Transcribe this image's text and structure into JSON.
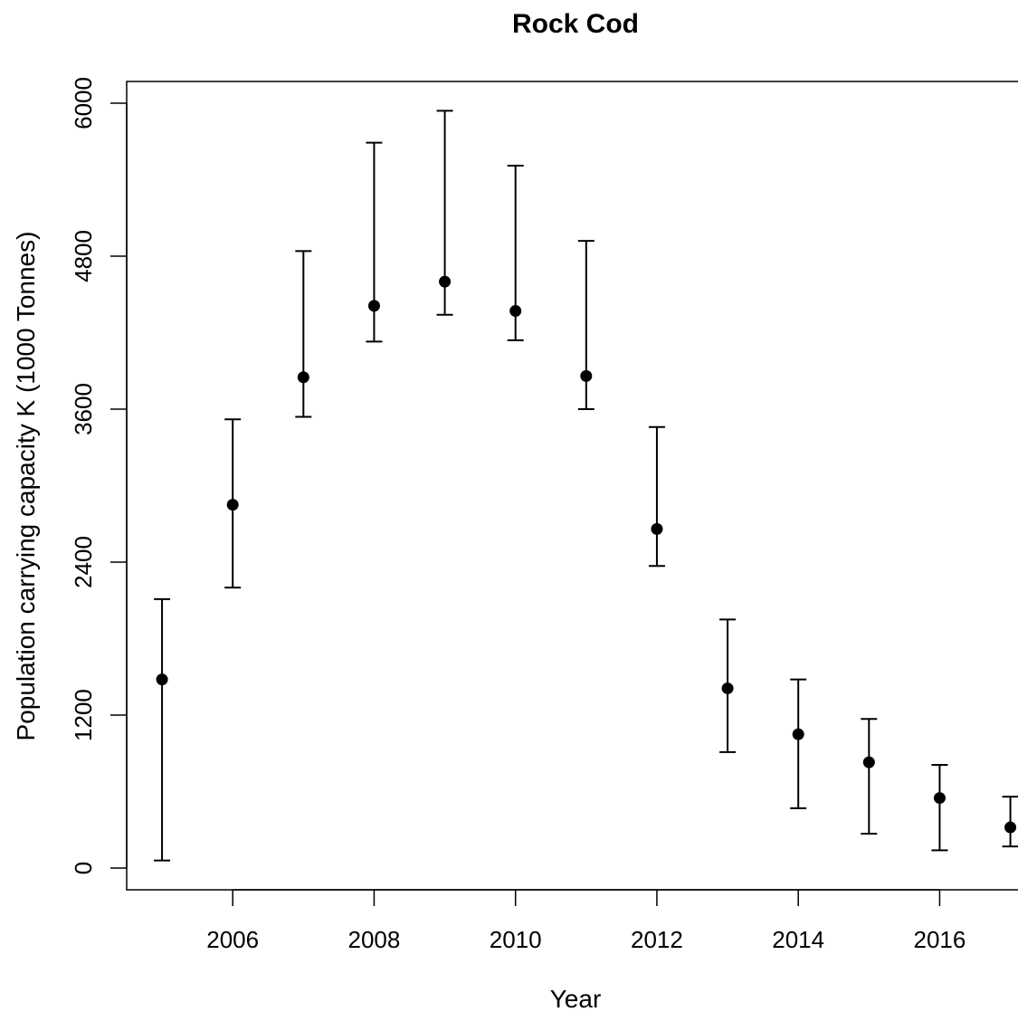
{
  "chart_data": {
    "type": "scatter",
    "title": "Rock Cod",
    "xlabel": "Year",
    "ylabel": "Population  carrying capacity  K  (1000 Tonnes)",
    "xlim": [
      2004.5,
      2017.3
    ],
    "ylim": [
      -170,
      6170
    ],
    "x_ticks": [
      2006,
      2008,
      2010,
      2012,
      2014,
      2016
    ],
    "y_ticks": [
      0,
      1200,
      2400,
      3600,
      4800,
      6000
    ],
    "grid": false,
    "legend": "none",
    "marker_color": "#000000",
    "points": [
      {
        "x": 2005,
        "y": 1480,
        "lower": 60,
        "upper": 2110
      },
      {
        "x": 2006,
        "y": 2850,
        "lower": 2200,
        "upper": 3520
      },
      {
        "x": 2007,
        "y": 3850,
        "lower": 3540,
        "upper": 4840
      },
      {
        "x": 2008,
        "y": 4410,
        "lower": 4130,
        "upper": 5690
      },
      {
        "x": 2009,
        "y": 4600,
        "lower": 4340,
        "upper": 5940
      },
      {
        "x": 2010,
        "y": 4370,
        "lower": 4140,
        "upper": 5510
      },
      {
        "x": 2011,
        "y": 3860,
        "lower": 3600,
        "upper": 4920
      },
      {
        "x": 2012,
        "y": 2660,
        "lower": 2370,
        "upper": 3460
      },
      {
        "x": 2013,
        "y": 1410,
        "lower": 910,
        "upper": 1950
      },
      {
        "x": 2014,
        "y": 1050,
        "lower": 470,
        "upper": 1480
      },
      {
        "x": 2015,
        "y": 830,
        "lower": 270,
        "upper": 1170
      },
      {
        "x": 2016,
        "y": 550,
        "lower": 140,
        "upper": 810
      },
      {
        "x": 2017,
        "y": 320,
        "lower": 170,
        "upper": 560
      }
    ]
  }
}
